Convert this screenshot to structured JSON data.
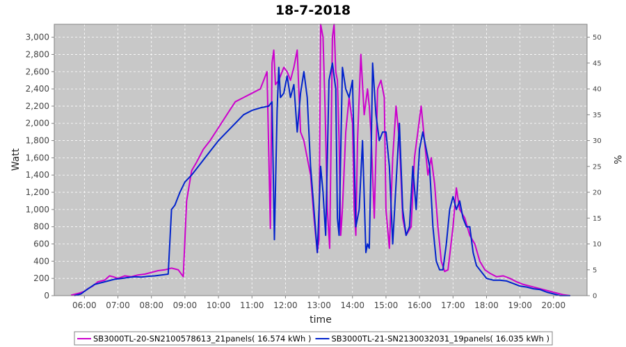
{
  "chart_data": {
    "type": "line",
    "title": "18-7-2018",
    "xlabel": "time",
    "ylabel": "Watt",
    "y2label": "%",
    "xlim": [
      5.1,
      21.0
    ],
    "ylim": [
      0,
      3150
    ],
    "y2lim": [
      0,
      52.5
    ],
    "x_ticks": [
      "06:00",
      "07:00",
      "08:00",
      "09:00",
      "10:00",
      "11:00",
      "12:00",
      "13:00",
      "14:00",
      "15:00",
      "16:00",
      "17:00",
      "18:00",
      "19:00",
      "20:00"
    ],
    "y_ticks": [
      "0",
      "200",
      "400",
      "600",
      "800",
      "1,000",
      "1,200",
      "1,400",
      "1,600",
      "1,800",
      "2,000",
      "2,200",
      "2,400",
      "2,600",
      "2,800",
      "3,000"
    ],
    "y2_ticks": [
      "0",
      "5",
      "10",
      "15",
      "20",
      "25",
      "30",
      "35",
      "40",
      "45",
      "50"
    ],
    "grid": true,
    "legend_position": "bottom",
    "colors": {
      "plot_bg": "#c8c8c8",
      "grid": "#ffffff"
    },
    "series": [
      {
        "name": "SB3000TL-20-SN2100578613_21panels( 16.574 kWh )",
        "color": "#cc00cc",
        "x": [
          5.6,
          5.85,
          6.0,
          6.1,
          6.25,
          6.4,
          6.6,
          6.75,
          6.85,
          7.0,
          7.2,
          7.4,
          7.6,
          7.8,
          8.0,
          8.2,
          8.4,
          8.6,
          8.8,
          8.95,
          9.05,
          9.2,
          9.35,
          9.55,
          9.75,
          10.0,
          10.25,
          10.5,
          10.75,
          11.0,
          11.25,
          11.45,
          11.55,
          11.6,
          11.65,
          11.7,
          11.8,
          11.85,
          11.95,
          12.05,
          12.15,
          12.25,
          12.35,
          12.45,
          12.55,
          12.65,
          12.75,
          12.85,
          12.95,
          13.0,
          13.05,
          13.12,
          13.18,
          13.25,
          13.32,
          13.4,
          13.45,
          13.5,
          13.55,
          13.6,
          13.65,
          13.7,
          13.8,
          13.9,
          14.0,
          14.05,
          14.1,
          14.15,
          14.25,
          14.35,
          14.45,
          14.5,
          14.55,
          14.6,
          14.65,
          14.75,
          14.85,
          14.95,
          15.0,
          15.1,
          15.2,
          15.3,
          15.4,
          15.5,
          15.6,
          15.75,
          15.85,
          15.95,
          16.05,
          16.15,
          16.25,
          16.35,
          16.45,
          16.55,
          16.65,
          16.75,
          16.85,
          17.0,
          17.1,
          17.2,
          17.35,
          17.5,
          17.65,
          17.8,
          17.95,
          18.1,
          18.3,
          18.5,
          18.7,
          18.9,
          19.1,
          19.3,
          19.5,
          19.7,
          19.9,
          20.1,
          20.3,
          20.5
        ],
        "values": [
          5,
          30,
          50,
          80,
          110,
          160,
          180,
          230,
          220,
          200,
          230,
          220,
          240,
          250,
          270,
          290,
          300,
          320,
          300,
          220,
          1100,
          1450,
          1550,
          1700,
          1800,
          1950,
          2100,
          2250,
          2300,
          2350,
          2400,
          2600,
          780,
          2700,
          2850,
          2450,
          2500,
          2550,
          2650,
          2600,
          2500,
          2650,
          2850,
          1900,
          1800,
          1600,
          1400,
          900,
          500,
          650,
          3150,
          3000,
          2200,
          1000,
          550,
          3000,
          3150,
          2600,
          2500,
          1800,
          700,
          1000,
          1900,
          2300,
          2000,
          1000,
          700,
          1800,
          2800,
          2100,
          2400,
          2200,
          1900,
          1400,
          900,
          2400,
          2500,
          2300,
          1000,
          550,
          1600,
          2200,
          1800,
          900,
          700,
          800,
          1600,
          1900,
          2200,
          1800,
          1400,
          1600,
          1300,
          800,
          400,
          280,
          300,
          800,
          1250,
          1000,
          900,
          700,
          600,
          400,
          300,
          260,
          220,
          230,
          200,
          160,
          130,
          110,
          90,
          70,
          50,
          30,
          10,
          0
        ]
      },
      {
        "name": "SB3000TL-21-SN2130032031_19panels( 16.035 kWh )",
        "color": "#0022cc",
        "x": [
          5.7,
          5.9,
          6.0,
          6.15,
          6.3,
          6.5,
          6.7,
          6.9,
          7.1,
          7.3,
          7.5,
          7.7,
          7.9,
          8.1,
          8.3,
          8.5,
          8.6,
          8.7,
          8.85,
          9.0,
          9.2,
          9.4,
          9.6,
          9.8,
          10.0,
          10.25,
          10.5,
          10.75,
          11.0,
          11.25,
          11.5,
          11.6,
          11.67,
          11.75,
          11.8,
          11.85,
          11.95,
          12.05,
          12.15,
          12.25,
          12.35,
          12.45,
          12.55,
          12.65,
          12.75,
          12.85,
          12.95,
          13.05,
          13.12,
          13.2,
          13.3,
          13.4,
          13.5,
          13.55,
          13.6,
          13.7,
          13.8,
          13.9,
          14.0,
          14.1,
          14.2,
          14.3,
          14.4,
          14.45,
          14.5,
          14.55,
          14.6,
          14.7,
          14.8,
          14.9,
          15.0,
          15.1,
          15.2,
          15.3,
          15.4,
          15.5,
          15.6,
          15.7,
          15.8,
          15.9,
          16.0,
          16.1,
          16.2,
          16.3,
          16.4,
          16.5,
          16.6,
          16.7,
          16.8,
          16.9,
          17.0,
          17.1,
          17.2,
          17.3,
          17.4,
          17.5,
          17.6,
          17.7,
          17.8,
          17.9,
          18.0,
          18.2,
          18.4,
          18.6,
          18.8,
          19.0,
          19.2,
          19.4,
          19.6,
          19.8,
          20.0,
          20.2,
          20.4,
          20.5
        ],
        "values": [
          0,
          20,
          50,
          90,
          130,
          150,
          170,
          190,
          200,
          210,
          220,
          215,
          225,
          230,
          240,
          250,
          1000,
          1050,
          1200,
          1320,
          1400,
          1500,
          1600,
          1700,
          1800,
          1900,
          2000,
          2100,
          2150,
          2180,
          2200,
          2250,
          650,
          2150,
          2650,
          2300,
          2350,
          2550,
          2300,
          2450,
          1900,
          2350,
          2600,
          2300,
          1500,
          1000,
          500,
          1500,
          1200,
          700,
          2500,
          2700,
          2400,
          900,
          700,
          2650,
          2400,
          2300,
          2500,
          800,
          1000,
          1800,
          500,
          600,
          550,
          1500,
          2700,
          2100,
          1800,
          1900,
          1900,
          1500,
          600,
          1300,
          2000,
          1000,
          700,
          800,
          1500,
          1000,
          1700,
          1900,
          1700,
          1500,
          800,
          400,
          300,
          300,
          600,
          1000,
          1150,
          1000,
          1100,
          900,
          800,
          800,
          500,
          350,
          300,
          250,
          200,
          180,
          180,
          170,
          140,
          110,
          100,
          80,
          70,
          40,
          20,
          0,
          0,
          0
        ]
      }
    ]
  }
}
